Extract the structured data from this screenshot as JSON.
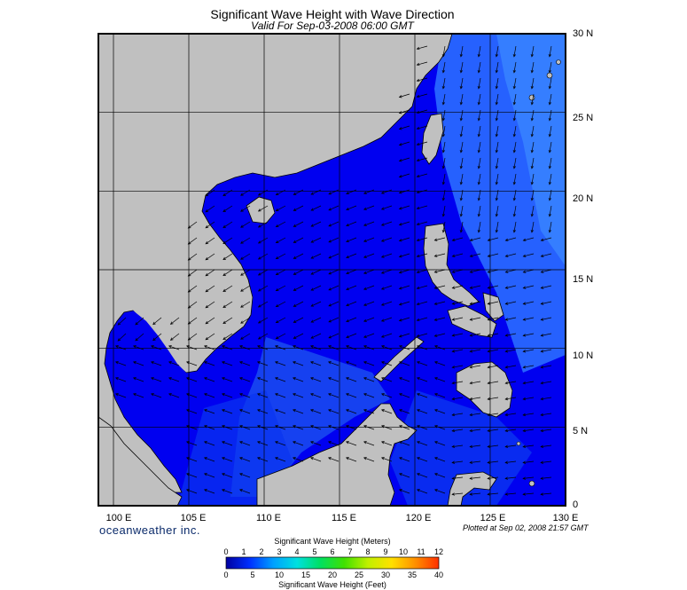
{
  "header": {
    "title": "Significant Wave Height with Wave Direction",
    "subtitle": "Valid For Sep-03-2008 06:00 GMT"
  },
  "map": {
    "region": "South China Sea",
    "lat_labels": [
      "30 N",
      "25 N",
      "20 N",
      "15 N",
      "10 N",
      "5 N",
      "0"
    ],
    "lon_labels": [
      "100 E",
      "105 E",
      "110 E",
      "115 E",
      "120 E",
      "125 E",
      "130 E"
    ],
    "lat_range": [
      0,
      30
    ],
    "lon_range": [
      99,
      130
    ],
    "grid": true,
    "colors": {
      "land": "#c0c0c0",
      "water_low": "#0000f0",
      "water_mid": "#1e5cf5",
      "water_high": "#3c7cff",
      "grid": "#000000"
    },
    "arrow_icon": "wave-direction-arrow"
  },
  "footer": {
    "brand": "oceanweather inc.",
    "plotted": "Plotted at Sep 02, 2008 21:57 GMT"
  },
  "colorbar": {
    "meters_title": "Significant Wave Height (Meters)",
    "feet_title": "Significant Wave Height (Feet)",
    "meters_ticks": [
      "0",
      "1",
      "2",
      "3",
      "4",
      "5",
      "6",
      "7",
      "8",
      "9",
      "10",
      "11",
      "12"
    ],
    "feet_ticks": [
      "0",
      "5",
      "10",
      "15",
      "20",
      "25",
      "30",
      "35",
      "40"
    ],
    "colors": [
      "#0000a0",
      "#0030ff",
      "#00a0ff",
      "#00e0e0",
      "#00e060",
      "#40e000",
      "#c0f000",
      "#ffe000",
      "#ff9000",
      "#ff3000"
    ]
  }
}
